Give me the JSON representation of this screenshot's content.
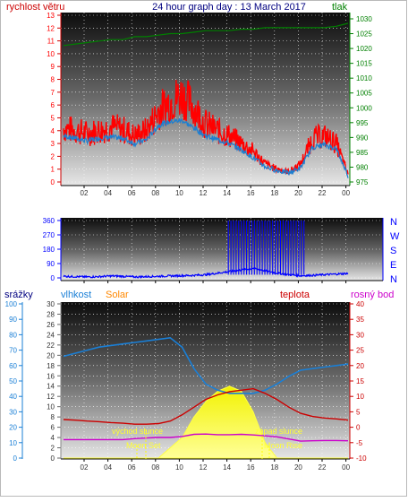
{
  "header": {
    "left_label": "rychlost větru",
    "title": "24 hour graph day : 13 March 2017",
    "right_label": "tlak"
  },
  "bottom_header": {
    "rain_label": "srážky",
    "humidity_label": "vlhkost",
    "solar_label": "Solar",
    "temp_label": "teplota",
    "dew_label": "rosný bod"
  },
  "annotations": {
    "sunrise": "východ slunce",
    "sunset": "západ slunce",
    "moonset": "Moon Set",
    "moonrise": "Moon Rise"
  },
  "colors": {
    "wind": "#ff0000",
    "wind_avg": "#1e7fd0",
    "pressure": "#008000",
    "direction": "#0000ff",
    "humidity": "#1a7fd6",
    "temperature": "#cc0000",
    "dewpoint": "#cc00cc",
    "solar": "#ffff33",
    "title": "#000080",
    "solar_label": "#ff8800"
  },
  "chart_data": [
    {
      "type": "line",
      "name": "wind-pressure",
      "x_ticks": [
        "02",
        "04",
        "06",
        "08",
        "10",
        "12",
        "14",
        "16",
        "18",
        "20",
        "22",
        "00"
      ],
      "x": [
        0,
        1,
        2,
        3,
        4,
        5,
        6,
        7,
        8,
        9,
        10,
        11,
        12,
        13,
        14,
        15,
        16,
        17,
        18,
        19,
        20,
        21,
        22,
        23,
        24
      ],
      "ylim_left": [
        0,
        13
      ],
      "yticks_left": [
        "0",
        "1",
        "2",
        "3",
        "4",
        "5",
        "6",
        "7",
        "8",
        "9",
        "10",
        "11",
        "12",
        "13"
      ],
      "ylim_right": [
        975,
        1030
      ],
      "yticks_right": [
        "975",
        "980",
        "985",
        "990",
        "995",
        "1000",
        "1005",
        "1010",
        "1015",
        "1020",
        "1025",
        "1030"
      ],
      "series": [
        {
          "name": "rychlost větru",
          "axis": "left",
          "values": [
            4.2,
            4.0,
            3.8,
            4.0,
            4.3,
            4.1,
            3.6,
            4.0,
            5.5,
            6.3,
            6.8,
            5.8,
            4.5,
            4.0,
            3.6,
            3.0,
            2.4,
            1.4,
            1.0,
            0.8,
            1.4,
            3.4,
            3.6,
            3.0,
            0.6
          ]
        },
        {
          "axis": "left",
          "values": [
            3.6,
            3.4,
            3.2,
            3.4,
            3.5,
            3.4,
            3.0,
            3.3,
            4.4,
            4.7,
            4.8,
            4.2,
            3.6,
            3.3,
            3.0,
            2.5,
            1.9,
            1.2,
            0.9,
            0.7,
            1.1,
            2.7,
            2.9,
            2.6,
            0.5
          ]
        },
        {
          "name": "tlak",
          "axis": "right",
          "values": [
            1021,
            1021.5,
            1022,
            1022.5,
            1023,
            1023,
            1024,
            1024,
            1024.5,
            1025,
            1025,
            1025.5,
            1026,
            1026,
            1026,
            1026.5,
            1026.5,
            1027,
            1027,
            1027,
            1027,
            1027,
            1027,
            1027.5,
            1028.5
          ]
        }
      ]
    },
    {
      "type": "line",
      "name": "wind-direction",
      "x_ticks": [
        "02",
        "04",
        "06",
        "08",
        "10",
        "12",
        "14",
        "16",
        "18",
        "20",
        "22",
        "00"
      ],
      "x": [
        0,
        1,
        2,
        3,
        4,
        5,
        6,
        7,
        8,
        9,
        10,
        11,
        12,
        13,
        14,
        15,
        16,
        17,
        18,
        19,
        20,
        21,
        22,
        23,
        24
      ],
      "ylim": [
        0,
        360
      ],
      "yticks": [
        "0",
        "90",
        "180",
        "270",
        "360"
      ],
      "compass_labels": [
        "N",
        "W",
        "S",
        "E",
        "N"
      ],
      "series": [
        {
          "values": [
            10,
            8,
            6,
            8,
            12,
            10,
            6,
            8,
            10,
            12,
            14,
            16,
            20,
            30,
            40,
            50,
            60,
            45,
            30,
            20,
            14,
            16,
            20,
            24,
            28
          ]
        }
      ]
    },
    {
      "type": "area",
      "name": "weather-multi",
      "x_ticks": [
        "02",
        "04",
        "06",
        "08",
        "10",
        "12",
        "14",
        "16",
        "18",
        "20",
        "22",
        "00"
      ],
      "x": [
        0,
        1,
        2,
        3,
        4,
        5,
        6,
        7,
        8,
        9,
        10,
        11,
        12,
        13,
        14,
        15,
        16,
        17,
        18,
        19,
        20,
        21,
        22,
        23,
        24
      ],
      "ylim_rain": [
        0,
        100
      ],
      "yticks_rain": [
        "0",
        "10",
        "20",
        "30",
        "40",
        "50",
        "60",
        "70",
        "80",
        "90",
        "100"
      ],
      "ylim_humidity": [
        0,
        30
      ],
      "yticks_humidity": [
        "0",
        "2",
        "4",
        "6",
        "8",
        "10",
        "12",
        "14",
        "16",
        "18",
        "20",
        "22",
        "24",
        "26",
        "28",
        "30"
      ],
      "ylim_temp": [
        -10,
        40
      ],
      "yticks_temp": [
        "-10",
        "-5",
        "0",
        "5",
        "10",
        "15",
        "20",
        "25",
        "30",
        "35",
        "40"
      ],
      "series": [
        {
          "name": "vlhkost",
          "values": [
            66,
            68,
            70,
            72,
            73,
            74,
            75,
            76,
            77,
            78,
            72,
            58,
            48,
            44,
            42,
            42,
            42,
            44,
            48,
            53,
            57,
            58,
            59,
            60,
            61
          ]
        },
        {
          "name": "teplota",
          "values": [
            2.5,
            2.3,
            2.0,
            1.8,
            1.5,
            1.3,
            1.0,
            1.0,
            1.2,
            2.0,
            4.0,
            6.5,
            9.0,
            10.5,
            11.5,
            12.0,
            12.5,
            11.0,
            9.0,
            6.5,
            4.5,
            3.5,
            3.0,
            2.7,
            2.3
          ]
        },
        {
          "name": "rosný bod",
          "values": [
            -4.0,
            -4.0,
            -4.0,
            -4.0,
            -4.0,
            -4.0,
            -3.7,
            -3.5,
            -3.3,
            -3.3,
            -3.0,
            -2.3,
            -2.2,
            -2.4,
            -2.4,
            -2.3,
            -2.5,
            -2.8,
            -3.1,
            -3.8,
            -4.5,
            -4.4,
            -4.3,
            -4.3,
            -4.4
          ]
        },
        {
          "name": "Solar",
          "values": [
            0,
            0,
            0,
            0,
            0,
            0,
            0,
            0,
            0,
            2,
            4,
            8,
            11,
            13,
            14,
            13,
            9,
            3,
            0,
            0,
            0,
            0,
            0,
            0,
            0
          ]
        }
      ]
    }
  ]
}
